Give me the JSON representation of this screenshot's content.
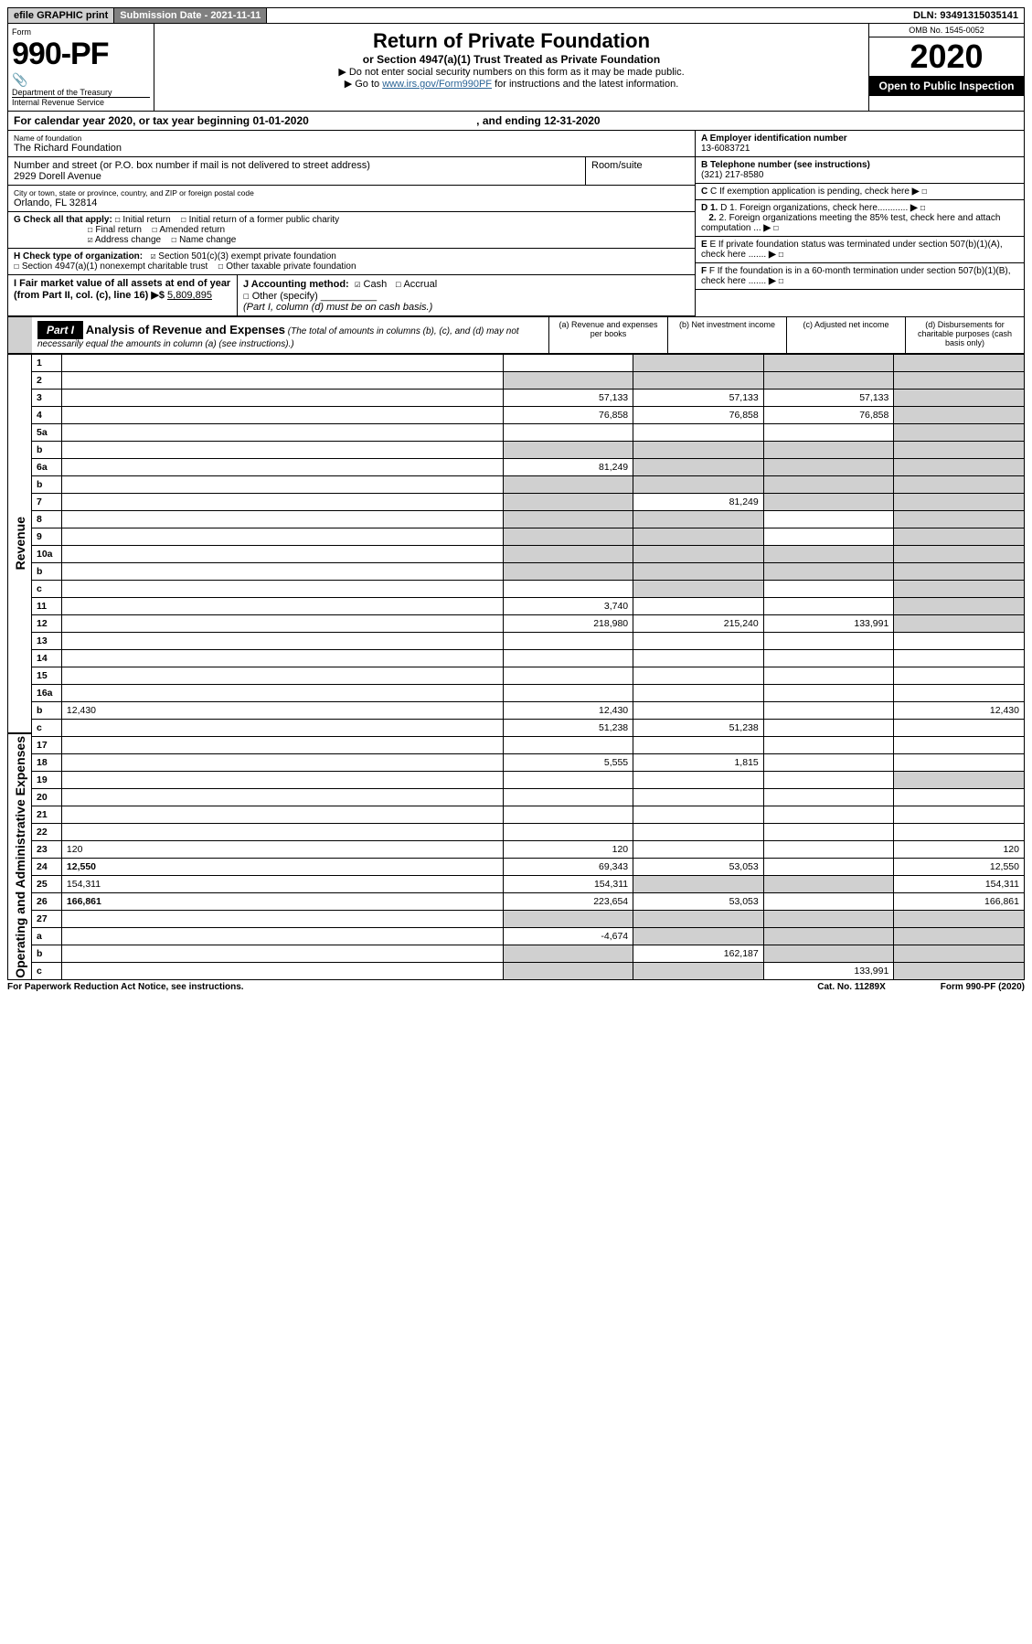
{
  "topbar": {
    "efile": "efile GRAPHIC print",
    "subdate_label": "Submission Date - 2021-11-11",
    "dln": "DLN: 93491315035141"
  },
  "header": {
    "form_label": "Form",
    "form_number": "990-PF",
    "dept": "Department of the Treasury",
    "irs": "Internal Revenue Service",
    "title": "Return of Private Foundation",
    "subtitle": "or Section 4947(a)(1) Trust Treated as Private Foundation",
    "note1": "▶ Do not enter social security numbers on this form as it may be made public.",
    "note2_pre": "▶ Go to ",
    "note2_link": "www.irs.gov/Form990PF",
    "note2_post": " for instructions and the latest information.",
    "omb": "OMB No. 1545-0052",
    "year": "2020",
    "inspection": "Open to Public Inspection"
  },
  "calendar": {
    "text_pre": "For calendar year 2020, or tax year beginning 01-01-2020",
    "text_mid": ", and ending 12-31-2020"
  },
  "entity": {
    "name_label": "Name of foundation",
    "name": "The Richard Foundation",
    "addr_label": "Number and street (or P.O. box number if mail is not delivered to street address)",
    "room_label": "Room/suite",
    "addr": "2929 Dorell Avenue",
    "city_label": "City or town, state or province, country, and ZIP or foreign postal code",
    "city": "Orlando, FL  32814",
    "a_label": "A Employer identification number",
    "a_val": "13-6083721",
    "b_label": "B Telephone number (see instructions)",
    "b_val": "(321) 217-8580",
    "c_label": "C If exemption application is pending, check here",
    "d1_label": "D 1. Foreign organizations, check here............",
    "d2_label": "2. Foreign organizations meeting the 85% test, check here and attach computation ...",
    "e_label": "E If private foundation status was terminated under section 507(b)(1)(A), check here .......",
    "f_label": "F If the foundation is in a 60-month termination under section 507(b)(1)(B), check here ......."
  },
  "checks": {
    "g_label": "G Check all that apply:",
    "g_opts": [
      "Initial return",
      "Initial return of a former public charity",
      "Final return",
      "Amended return",
      "Address change",
      "Name change"
    ],
    "h_label": "H Check type of organization:",
    "h_opts": [
      "Section 501(c)(3) exempt private foundation",
      "Section 4947(a)(1) nonexempt charitable trust",
      "Other taxable private foundation"
    ],
    "i_label": "I Fair market value of all assets at end of year (from Part II, col. (c), line 16) ▶$",
    "i_val": "5,809,895",
    "j_label": "J Accounting method:",
    "j_opts": [
      "Cash",
      "Accrual",
      "Other (specify)"
    ],
    "j_note": "(Part I, column (d) must be on cash basis.)"
  },
  "part1": {
    "part_label": "Part I",
    "title": "Analysis of Revenue and Expenses",
    "subtitle": "(The total of amounts in columns (b), (c), and (d) may not necessarily equal the amounts in column (a) (see instructions).)",
    "col_a": "(a) Revenue and expenses per books",
    "col_b": "(b) Net investment income",
    "col_c": "(c) Adjusted net income",
    "col_d": "(d) Disbursements for charitable purposes (cash basis only)"
  },
  "side_labels": {
    "revenue": "Revenue",
    "expenses": "Operating and Administrative Expenses"
  },
  "rows": [
    {
      "n": "1",
      "d": "",
      "a": "",
      "b": "",
      "c": "",
      "bShade": true,
      "cShade": true,
      "dShade": true
    },
    {
      "n": "2",
      "d": "",
      "a": "",
      "b": "",
      "c": "",
      "aShade": true,
      "bShade": true,
      "cShade": true,
      "dShade": true
    },
    {
      "n": "3",
      "d": "",
      "a": "57,133",
      "b": "57,133",
      "c": "57,133",
      "dShade": true
    },
    {
      "n": "4",
      "d": "",
      "a": "76,858",
      "b": "76,858",
      "c": "76,858",
      "dShade": true
    },
    {
      "n": "5a",
      "d": "",
      "a": "",
      "b": "",
      "c": "",
      "dShade": true
    },
    {
      "n": "b",
      "d": "",
      "a": "",
      "b": "",
      "c": "",
      "aShade": true,
      "bShade": true,
      "cShade": true,
      "dShade": true
    },
    {
      "n": "6a",
      "d": "",
      "a": "81,249",
      "b": "",
      "c": "",
      "bShade": true,
      "cShade": true,
      "dShade": true
    },
    {
      "n": "b",
      "d": "",
      "a": "",
      "b": "",
      "c": "",
      "aShade": true,
      "bShade": true,
      "cShade": true,
      "dShade": true
    },
    {
      "n": "7",
      "d": "",
      "a": "",
      "b": "81,249",
      "c": "",
      "aShade": true,
      "cShade": true,
      "dShade": true
    },
    {
      "n": "8",
      "d": "",
      "a": "",
      "b": "",
      "c": "",
      "aShade": true,
      "bShade": true,
      "dShade": true
    },
    {
      "n": "9",
      "d": "",
      "a": "",
      "b": "",
      "c": "",
      "aShade": true,
      "bShade": true,
      "dShade": true
    },
    {
      "n": "10a",
      "d": "",
      "a": "",
      "b": "",
      "c": "",
      "aShade": true,
      "bShade": true,
      "cShade": true,
      "dShade": true
    },
    {
      "n": "b",
      "d": "",
      "a": "",
      "b": "",
      "c": "",
      "aShade": true,
      "bShade": true,
      "cShade": true,
      "dShade": true
    },
    {
      "n": "c",
      "d": "",
      "a": "",
      "b": "",
      "c": "",
      "bShade": true,
      "dShade": true
    },
    {
      "n": "11",
      "d": "",
      "a": "3,740",
      "b": "",
      "c": "",
      "dShade": true
    },
    {
      "n": "12",
      "d": "",
      "a": "218,980",
      "b": "215,240",
      "c": "133,991",
      "bold": true,
      "dShade": true
    },
    {
      "n": "13",
      "d": "",
      "a": "",
      "b": "",
      "c": ""
    },
    {
      "n": "14",
      "d": "",
      "a": "",
      "b": "",
      "c": ""
    },
    {
      "n": "15",
      "d": "",
      "a": "",
      "b": "",
      "c": ""
    },
    {
      "n": "16a",
      "d": "",
      "a": "",
      "b": "",
      "c": ""
    },
    {
      "n": "b",
      "d": "12,430",
      "a": "12,430",
      "b": "",
      "c": ""
    },
    {
      "n": "c",
      "d": "",
      "a": "51,238",
      "b": "51,238",
      "c": ""
    },
    {
      "n": "17",
      "d": "",
      "a": "",
      "b": "",
      "c": ""
    },
    {
      "n": "18",
      "d": "",
      "a": "5,555",
      "b": "1,815",
      "c": ""
    },
    {
      "n": "19",
      "d": "",
      "a": "",
      "b": "",
      "c": "",
      "dShade": true
    },
    {
      "n": "20",
      "d": "",
      "a": "",
      "b": "",
      "c": ""
    },
    {
      "n": "21",
      "d": "",
      "a": "",
      "b": "",
      "c": ""
    },
    {
      "n": "22",
      "d": "",
      "a": "",
      "b": "",
      "c": ""
    },
    {
      "n": "23",
      "d": "120",
      "a": "120",
      "b": "",
      "c": ""
    },
    {
      "n": "24",
      "d": "12,550",
      "a": "69,343",
      "b": "53,053",
      "c": "",
      "bold": true
    },
    {
      "n": "25",
      "d": "154,311",
      "a": "154,311",
      "b": "",
      "c": "",
      "bShade": true,
      "cShade": true
    },
    {
      "n": "26",
      "d": "166,861",
      "a": "223,654",
      "b": "53,053",
      "c": "",
      "bold": true
    },
    {
      "n": "27",
      "d": "",
      "a": "",
      "b": "",
      "c": "",
      "aShade": true,
      "bShade": true,
      "cShade": true,
      "dShade": true
    },
    {
      "n": "a",
      "d": "",
      "a": "-4,674",
      "b": "",
      "c": "",
      "bold": true,
      "bShade": true,
      "cShade": true,
      "dShade": true
    },
    {
      "n": "b",
      "d": "",
      "a": "",
      "b": "162,187",
      "c": "",
      "bold": true,
      "aShade": true,
      "cShade": true,
      "dShade": true
    },
    {
      "n": "c",
      "d": "",
      "a": "",
      "b": "",
      "c": "133,991",
      "bold": true,
      "aShade": true,
      "bShade": true,
      "dShade": true
    }
  ],
  "footer": {
    "left": "For Paperwork Reduction Act Notice, see instructions.",
    "mid": "Cat. No. 11289X",
    "right": "Form 990-PF (2020)"
  },
  "colors": {
    "shade": "#d0d0d0",
    "link": "#2a6496",
    "black": "#000000",
    "darkgray": "#808080"
  }
}
